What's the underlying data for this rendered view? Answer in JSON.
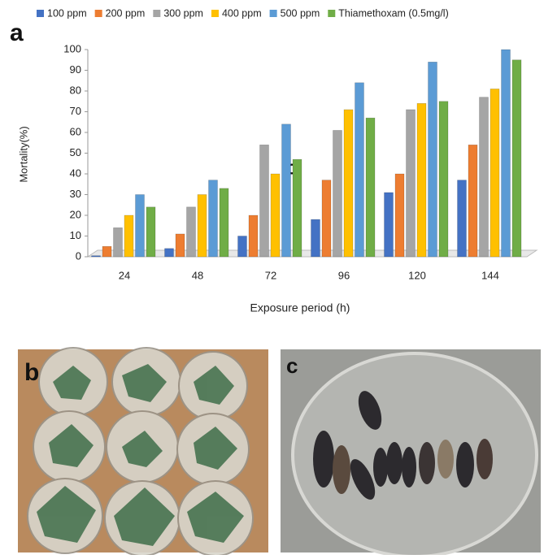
{
  "chart_data": {
    "type": "bar",
    "panel_label": "a",
    "annotation": "c",
    "x_label": "Exposure period (h)",
    "y_label": "Mortality(%)",
    "categories": [
      "24",
      "48",
      "72",
      "96",
      "120",
      "144"
    ],
    "series": [
      {
        "name": "100 ppm",
        "color": "#4472c4",
        "values": [
          0.5,
          4,
          10,
          18,
          31,
          37
        ]
      },
      {
        "name": "200 ppm",
        "color": "#ed7d31",
        "values": [
          5,
          11,
          20,
          37,
          40,
          54
        ]
      },
      {
        "name": "300 ppm",
        "color": "#a5a5a5",
        "values": [
          14,
          24,
          54,
          61,
          71,
          77
        ]
      },
      {
        "name": "400 ppm",
        "color": "#ffc000",
        "values": [
          20,
          30,
          40,
          71,
          74,
          81
        ]
      },
      {
        "name": "500 ppm",
        "color": "#5b9bd5",
        "values": [
          30,
          37,
          64,
          84,
          94,
          100
        ]
      },
      {
        "name": "Thiamethoxam (0.5mg/l)",
        "color": "#70ad47",
        "values": [
          24,
          33,
          47,
          67,
          75,
          95
        ]
      }
    ],
    "ylim": [
      0,
      100
    ],
    "yticks": [
      0,
      10,
      20,
      30,
      40,
      50,
      60,
      70,
      80,
      90,
      100
    ]
  },
  "photos": [
    {
      "label": "b"
    },
    {
      "label": "c"
    }
  ]
}
